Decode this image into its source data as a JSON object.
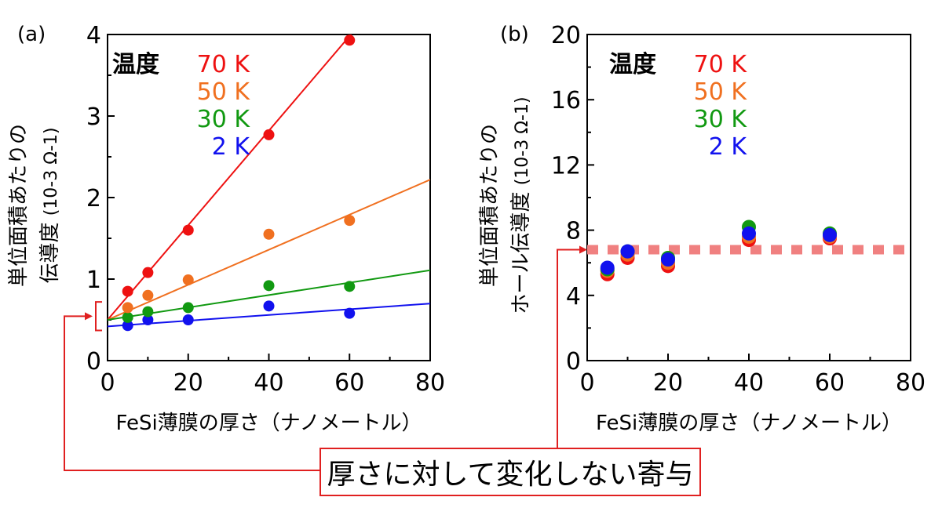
{
  "colors": {
    "70K": "#ee1111",
    "50K": "#f07020",
    "30K": "#119911",
    "2K": "#1111ee",
    "guide": "#f08080",
    "annotation": "#e02020"
  },
  "annotation": {
    "text": "厚さに対して変化しない寄与"
  },
  "chart_data": [
    {
      "panel_label": "(a)",
      "type": "scatter",
      "xlabel": "FeSi薄膜の厚さ（ナノメートル）",
      "ylabel_line1": "単位面積あたりの",
      "ylabel_line2": "伝導度",
      "ylabel_unit": "(10-3 Ω-1)",
      "xlim": [
        0,
        80
      ],
      "ylim": [
        0,
        4
      ],
      "xticks": [
        "0",
        "20",
        "40",
        "60",
        "80"
      ],
      "yticks": [
        "0",
        "1",
        "2",
        "3",
        "4"
      ],
      "legend_title": "温度",
      "legend_position": "top-left",
      "fit_lines": true,
      "series": [
        {
          "name": "70 K",
          "color_key": "70K",
          "x": [
            5,
            10,
            20,
            40,
            60
          ],
          "y": [
            0.85,
            1.08,
            1.6,
            2.77,
            3.93
          ],
          "fit": [
            0.5,
            0.058
          ]
        },
        {
          "name": "50 K",
          "color_key": "50K",
          "x": [
            5,
            10,
            20,
            40,
            60
          ],
          "y": [
            0.65,
            0.8,
            0.99,
            1.55,
            1.72
          ],
          "fit": [
            0.5,
            0.0215
          ]
        },
        {
          "name": "30 K",
          "color_key": "30K",
          "x": [
            5,
            10,
            20,
            40,
            60
          ],
          "y": [
            0.53,
            0.6,
            0.65,
            0.92,
            0.91
          ],
          "fit": [
            0.5,
            0.0076
          ]
        },
        {
          "name": "2 K",
          "color_key": "2K",
          "x": [
            5,
            10,
            20,
            40,
            60
          ],
          "y": [
            0.43,
            0.5,
            0.5,
            0.67,
            0.58
          ],
          "fit": [
            0.42,
            0.0035
          ]
        }
      ]
    },
    {
      "panel_label": "(b)",
      "type": "scatter",
      "xlabel": "FeSi薄膜の厚さ（ナノメートル）",
      "ylabel_line1": "単位面積あたりの",
      "ylabel_line2": "ホール伝導度",
      "ylabel_unit": "(10-3 Ω-1)",
      "xlim": [
        0,
        80
      ],
      "ylim": [
        0,
        20
      ],
      "xticks": [
        "0",
        "20",
        "40",
        "60",
        "80"
      ],
      "yticks": [
        "0",
        "4",
        "8",
        "12",
        "16",
        "20"
      ],
      "legend_title": "温度",
      "legend_position": "top-left",
      "guide_line_y": 6.8,
      "series": [
        {
          "name": "70 K",
          "color_key": "70K",
          "x": [
            5,
            10,
            20,
            40,
            60
          ],
          "y": [
            5.3,
            6.3,
            5.8,
            7.4,
            7.5
          ]
        },
        {
          "name": "50 K",
          "color_key": "50K",
          "x": [
            5,
            10,
            20,
            40,
            60
          ],
          "y": [
            5.5,
            6.5,
            6.0,
            7.6,
            7.6
          ]
        },
        {
          "name": "30 K",
          "color_key": "30K",
          "x": [
            5,
            10,
            20,
            40,
            60
          ],
          "y": [
            5.6,
            6.7,
            6.3,
            8.2,
            7.8
          ]
        },
        {
          "name": "2 K",
          "color_key": "2K",
          "x": [
            5,
            10,
            20,
            40,
            60
          ],
          "y": [
            5.7,
            6.7,
            6.2,
            7.8,
            7.7
          ]
        }
      ]
    }
  ]
}
